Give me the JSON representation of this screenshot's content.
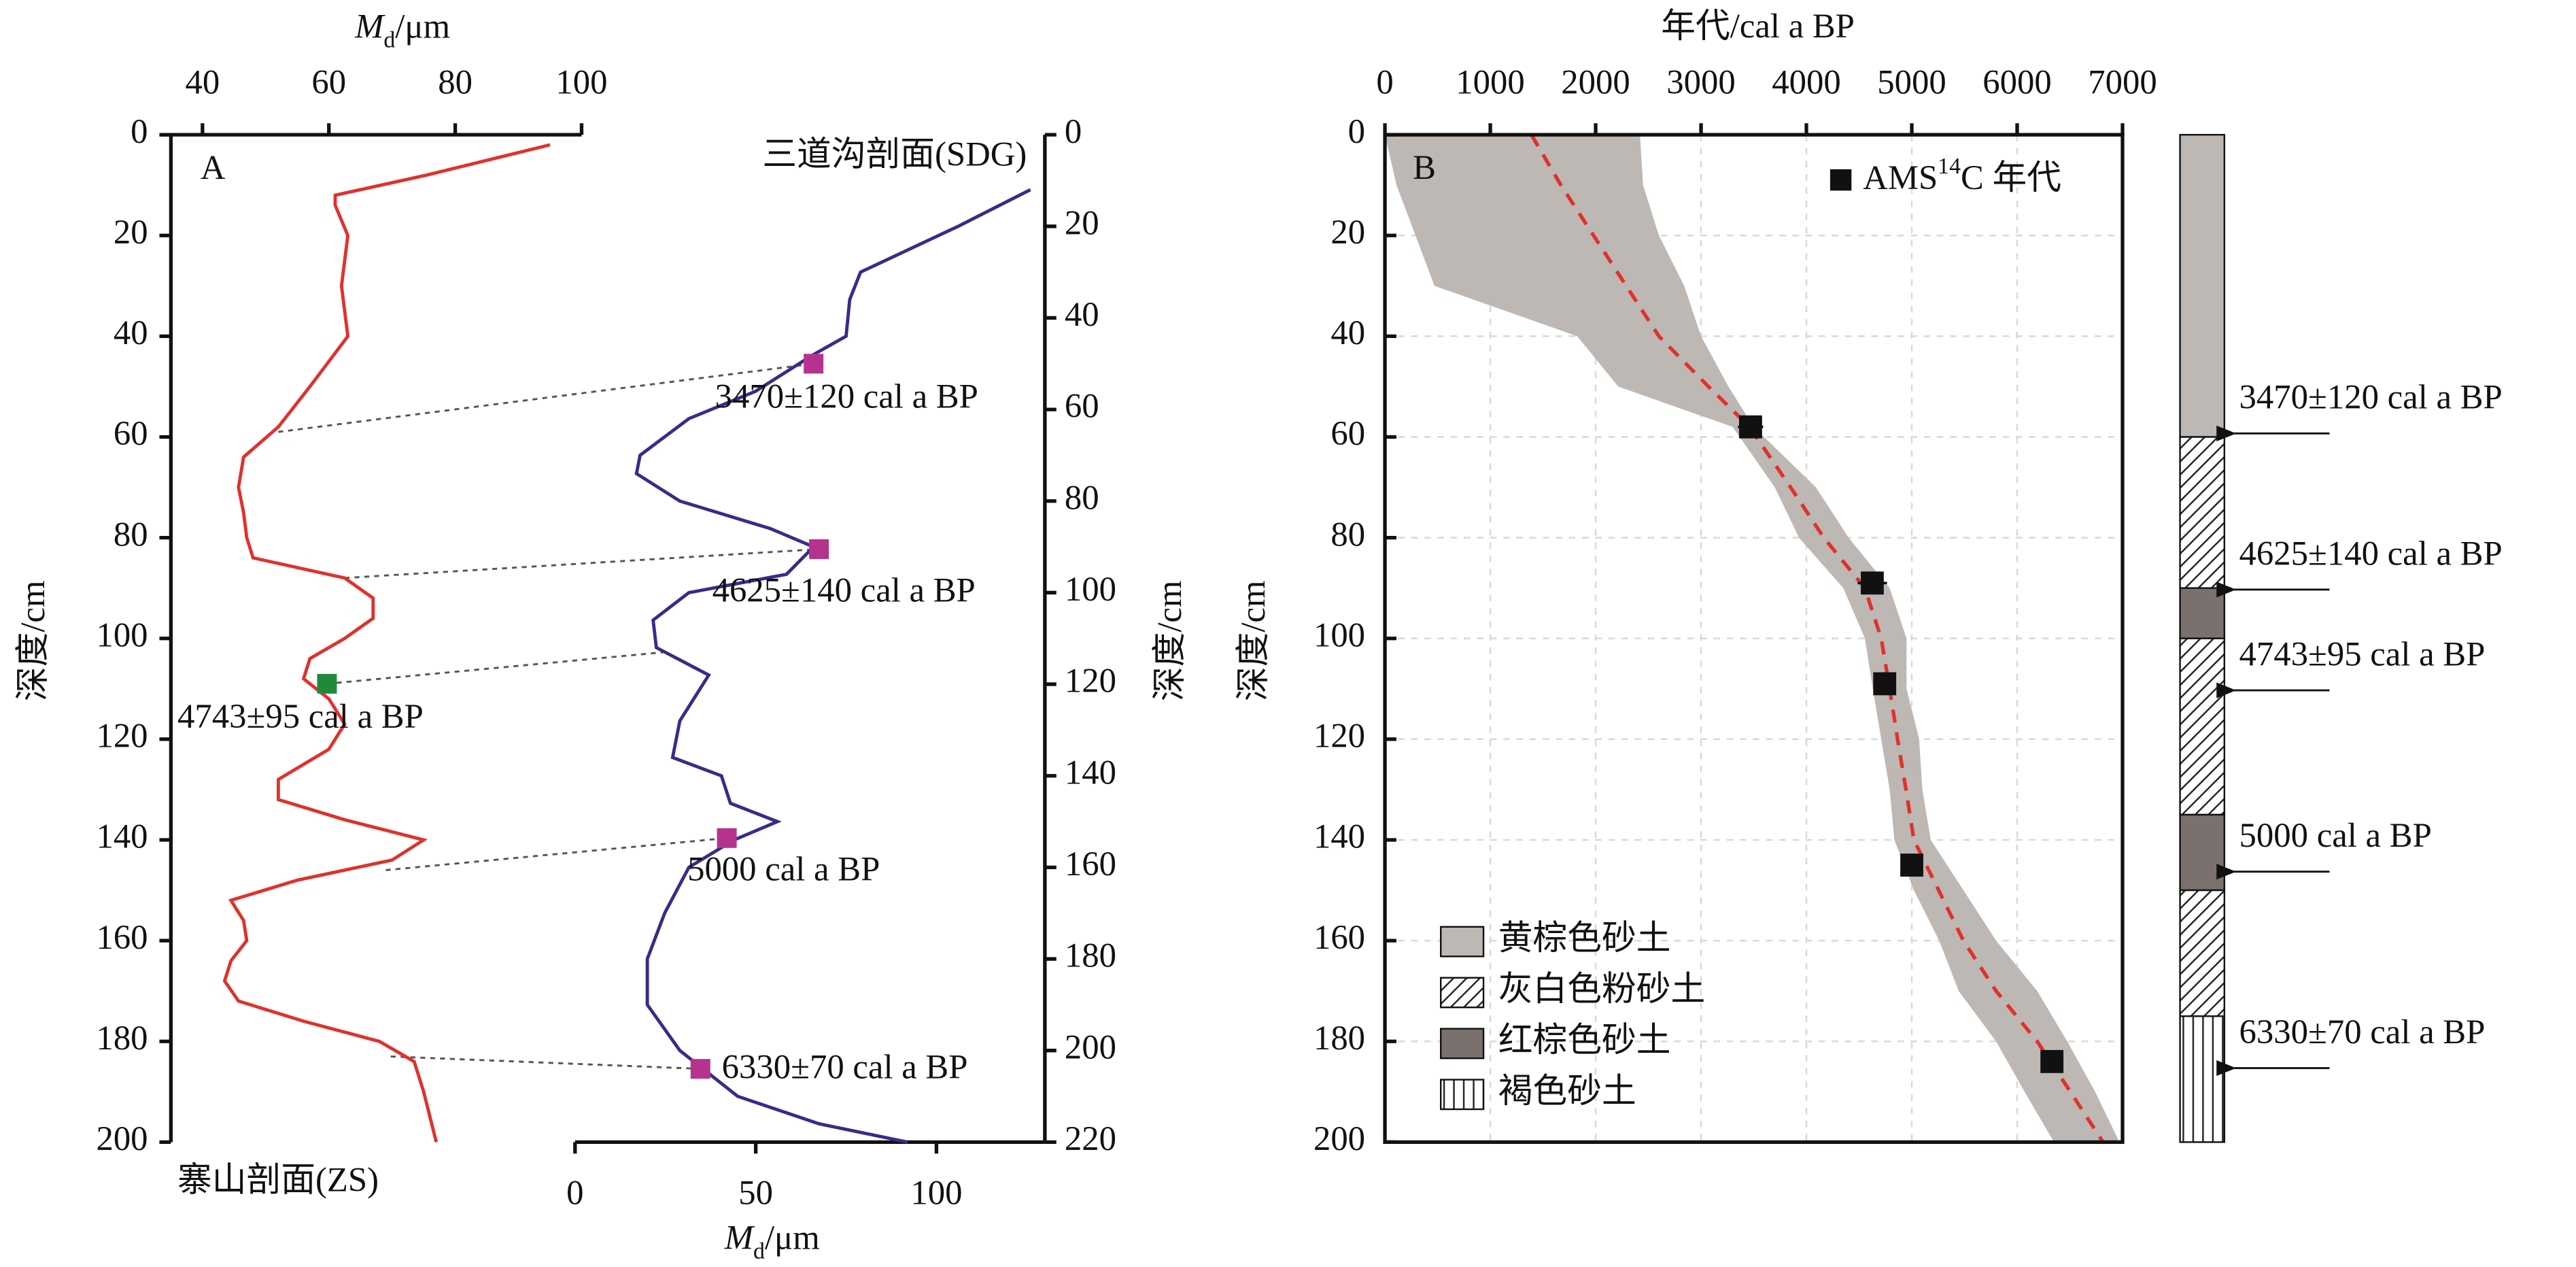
{
  "chart_data": [
    {
      "type": "profile",
      "label": "A",
      "xlim": [
        0,
        130
      ],
      "xticks": [
        0,
        50,
        100
      ],
      "xlabel": {
        "main": "M",
        "sub": "d",
        "unit": "/μm"
      },
      "x2lim": [
        35,
        100
      ],
      "x2ticks": [
        40,
        60,
        80,
        100
      ],
      "x2label": {
        "main": "M",
        "sub": "d",
        "unit": "/μm"
      },
      "ylim": [
        0,
        200
      ],
      "yticks": [
        0,
        20,
        40,
        60,
        80,
        100,
        120,
        140,
        160,
        180,
        200
      ],
      "ylabel": "深度/cm",
      "y2lim": [
        0,
        220
      ],
      "y2ticks": [
        0,
        20,
        40,
        60,
        80,
        100,
        120,
        140,
        160,
        180,
        200,
        220
      ],
      "y2label": "深度/cm",
      "series": [
        {
          "name": "寨山剖面(ZS)",
          "color": "#e0312c",
          "axis": "x2",
          "x": [
            95,
            75.5,
            61,
            61,
            63,
            62,
            63,
            57,
            52,
            46.5,
            45.7,
            46.5,
            47,
            48,
            62.5,
            67,
            67,
            62.5,
            57,
            56,
            60,
            62.5,
            60,
            52,
            52,
            62.5,
            75,
            70,
            55,
            44.5,
            46.5,
            47,
            44.5,
            43.5,
            45.7,
            56,
            68,
            73.5,
            75,
            77
          ],
          "values": [
            2,
            8,
            12,
            14,
            20,
            30,
            40,
            50,
            58,
            64,
            70,
            75,
            80,
            84,
            88,
            92,
            96,
            100,
            104,
            108,
            112,
            117,
            122,
            128,
            132,
            136,
            140,
            144,
            148,
            152,
            156,
            160,
            164,
            168,
            172,
            176,
            180,
            184,
            190,
            200
          ]
        },
        {
          "name": "三道沟剖面(SDG)",
          "color": "#3a2a8a",
          "axis": "y2",
          "x": [
            126,
            106,
            79,
            76,
            75,
            66,
            50,
            31.5,
            18,
            17,
            29,
            54,
            66,
            58.5,
            31.5,
            21.6,
            22.5,
            37,
            29,
            27,
            40.5,
            43,
            56,
            44,
            31.5,
            24.8,
            20,
            20,
            29,
            45,
            67.5,
            92
          ],
          "values": [
            12,
            20,
            30,
            36,
            44,
            48,
            56,
            62,
            70,
            74,
            80,
            86,
            90,
            96,
            100,
            106,
            112,
            118,
            128,
            136,
            140,
            146,
            150,
            154,
            160,
            170,
            180,
            190,
            200,
            210,
            216,
            220
          ]
        }
      ],
      "samples": [
        {
          "series": 1,
          "x": 66,
          "y": 50,
          "color": "#b5338f",
          "label": "3470±120 cal a BP"
        },
        {
          "series": 1,
          "x": 67.5,
          "y": 90.5,
          "color": "#b5338f",
          "label": "4625±140 cal a BP"
        },
        {
          "series": 0,
          "x": 59.7,
          "y": 109,
          "color": "#1f8a3a",
          "label": "4743±95 cal a BP"
        },
        {
          "series": 1,
          "x": 42,
          "y": 153.6,
          "color": "#b5338f",
          "label": "5000 cal a BP"
        },
        {
          "series": 1,
          "x": 34.7,
          "y": 204,
          "color": "#b5338f",
          "label": "6330±70 cal a BP"
        }
      ],
      "connectors": [
        {
          "from": [
            52,
            59
          ],
          "to": [
            66,
            50
          ]
        },
        {
          "from": [
            62.5,
            88
          ],
          "to": [
            67.5,
            90.5
          ]
        },
        {
          "from": [
            59.7,
            109
          ],
          "to": [
            24.7,
            113
          ]
        },
        {
          "from": [
            69,
            146
          ],
          "to": [
            42,
            153.6
          ]
        },
        {
          "from": [
            69.8,
            183
          ],
          "to": [
            34.7,
            204
          ]
        }
      ]
    },
    {
      "type": "age-depth",
      "label": "B",
      "xlabel": "年代/cal a BP",
      "ylabel": "深度/cm",
      "xlim": [
        0,
        7000
      ],
      "xticks": [
        0,
        1000,
        2000,
        3000,
        4000,
        5000,
        6000,
        7000
      ],
      "ylim": [
        0,
        200
      ],
      "yticks": [
        0,
        20,
        40,
        60,
        80,
        100,
        120,
        140,
        160,
        180,
        200
      ],
      "grid": true,
      "band": {
        "color": "#bdb8b4",
        "depth": [
          0,
          10,
          20,
          30,
          40,
          50,
          58,
          70,
          80,
          90,
          100,
          110,
          120,
          130,
          140,
          150,
          160,
          170,
          180,
          190,
          200
        ],
        "lower": [
          0,
          110,
          290,
          470,
          1825,
          2215,
          3300,
          3700,
          3930,
          4350,
          4555,
          4630,
          4710,
          4790,
          4835,
          5020,
          5260,
          5445,
          5800,
          6070,
          6350
        ],
        "upper": [
          2420,
          2450,
          2600,
          2840,
          3000,
          3260,
          3500,
          4090,
          4400,
          4790,
          4950,
          4950,
          5070,
          5100,
          5180,
          5490,
          5800,
          6190,
          6475,
          6740,
          6970
        ]
      },
      "model": {
        "color": "#e0312c",
        "depth": [
          0,
          10,
          20,
          30,
          40,
          50,
          58,
          70,
          80,
          90,
          100,
          110,
          120,
          130,
          140,
          150,
          160,
          170,
          180,
          190,
          200
        ],
        "age": [
          1390,
          1670,
          1980,
          2290,
          2600,
          3070,
          3460,
          3850,
          4165,
          4555,
          4710,
          4790,
          4865,
          4945,
          5020,
          5255,
          5490,
          5800,
          6190,
          6505,
          6815
        ]
      },
      "dates": {
        "legend": {
          "main": "AMS",
          "sup": "14",
          "rest": "C 年代"
        },
        "age": [
          3470,
          4625,
          4743,
          5000,
          6330
        ],
        "error": [
          120,
          140,
          95,
          null,
          70
        ],
        "depth": [
          58,
          89,
          109,
          145,
          184
        ],
        "labels": [
          "3470±120 cal a BP",
          "4625±140 cal a BP",
          "4743±95 cal a BP",
          "5000 cal a BP",
          "6330±70 cal a BP"
        ]
      },
      "legend": [
        {
          "name": "黄棕色砂土",
          "pattern": "solid",
          "color": "#bdb8b4"
        },
        {
          "name": "灰白色粉砂土",
          "pattern": "hatch"
        },
        {
          "name": "红棕色砂土",
          "pattern": "solid",
          "color": "#7a706d"
        },
        {
          "name": "褐色砂土",
          "pattern": "vlines"
        }
      ],
      "strata": [
        {
          "top": 0,
          "bottom": 60,
          "kind": 0
        },
        {
          "top": 60,
          "bottom": 90,
          "kind": 1
        },
        {
          "top": 90,
          "bottom": 100,
          "kind": 2
        },
        {
          "top": 100,
          "bottom": 135,
          "kind": 1
        },
        {
          "top": 135,
          "bottom": 150,
          "kind": 2
        },
        {
          "top": 150,
          "bottom": 175,
          "kind": 1
        },
        {
          "top": 175,
          "bottom": 200,
          "kind": 3
        }
      ]
    }
  ]
}
